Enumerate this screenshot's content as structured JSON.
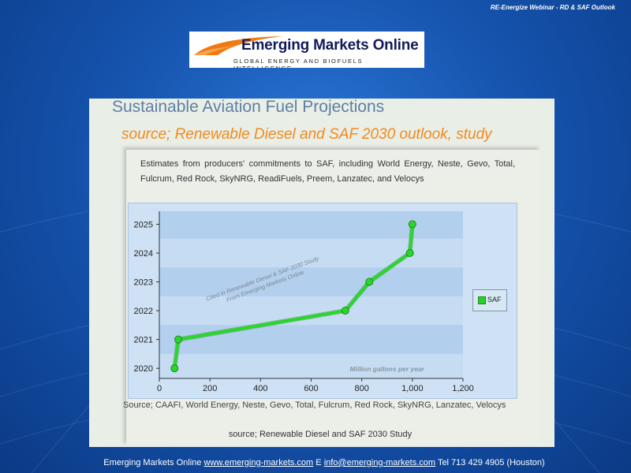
{
  "header": {
    "note": "RE-Energize Webinar - RD & SAF Outlook"
  },
  "logo": {
    "title": "Emerging Markets Online",
    "tagline": "GLOBAL ENERGY AND BIOFUELS INTELLIGENCE"
  },
  "slide": {
    "title": "Sustainable Aviation Fuel Projections",
    "subtitle": "source; Renewable Diesel and SAF 2030 outlook, study",
    "estimates": "Estimates from producers' commitments to SAF, including World Energy, Neste, Gevo, Total, Fulcrum, Red Rock, SkyNRG, ReadiFuels, Preem, Lanzatec, and Velocys",
    "source_line": "Source; CAAFI, World Energy, Neste, Gevo, Total, Fulcrum, Red Rock, SkyNRG, Lanzatec, Velocys",
    "bottom_source": "source; Renewable Diesel and SAF 2030 Study"
  },
  "chart_data": {
    "type": "line",
    "xlabel": "",
    "ylabel": "",
    "xlim": [
      0,
      1200
    ],
    "ylim": [
      2019.65,
      2025.45
    ],
    "xticks": [
      0,
      200,
      400,
      600,
      800,
      1000,
      1200
    ],
    "xtick_labels": [
      "0",
      "200",
      "400",
      "600",
      "800",
      "1,000",
      "1,200"
    ],
    "yticks": [
      2020,
      2021,
      2022,
      2023,
      2024,
      2025
    ],
    "ytick_labels": [
      "2020",
      "2021",
      "2022",
      "2023",
      "2024",
      "2025"
    ],
    "series": [
      {
        "name": "SAF",
        "color": "#2bd62b",
        "points": [
          {
            "x": 60,
            "y": 2020
          },
          {
            "x": 75,
            "y": 2021
          },
          {
            "x": 735,
            "y": 2022
          },
          {
            "x": 830,
            "y": 2023
          },
          {
            "x": 990,
            "y": 2024
          },
          {
            "x": 1000,
            "y": 2025
          }
        ]
      }
    ],
    "annotations": {
      "watermark_line1": "Cited in Renewable Diesel & SAF 2030 Study",
      "watermark_line2": "From Emerging Markets Online",
      "units": "Million gallons per year"
    },
    "legend_position": "right",
    "grid": "alternating horizontal bands"
  },
  "footer": {
    "company": "Emerging Markets Online",
    "website": "www.emerging-markets.com",
    "email_prefix": "E",
    "email": "info@emerging-markets.com",
    "phone": "Tel 713 429 4905 (Houston)"
  }
}
